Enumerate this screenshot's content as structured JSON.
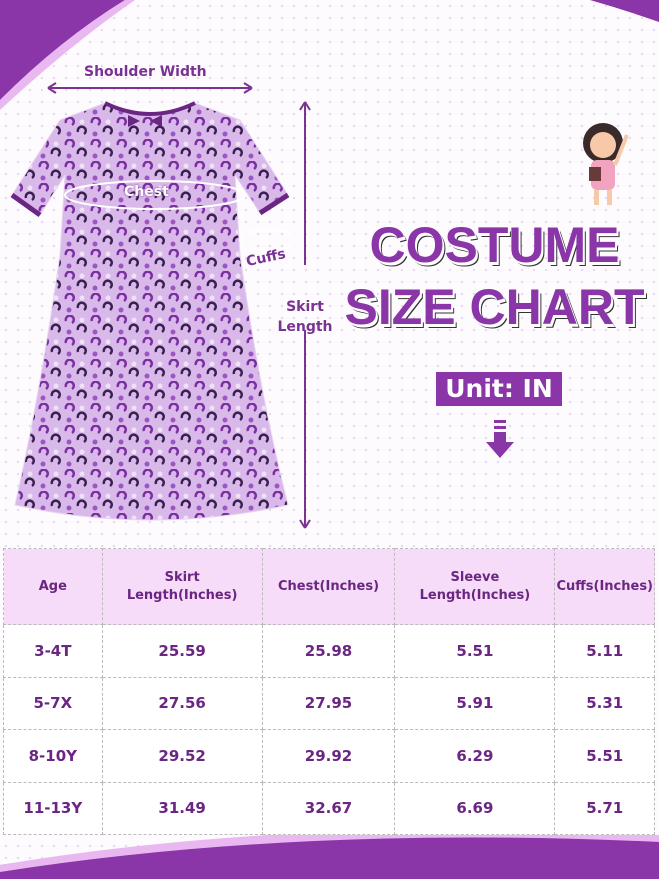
{
  "title_line1": "COSTUME",
  "title_line2": "SIZE CHART",
  "unit_label": "Unit: IN",
  "diagram_labels": {
    "shoulder": "Shoulder Width",
    "chest": "Chest",
    "cuffs": "Cuffs",
    "skirt": "Skirt Length"
  },
  "colors": {
    "accent": "#8a35a8",
    "header_bg": "#f6dcf9",
    "text": "#6a2682"
  },
  "icons": [
    "down-arrow-icon",
    "girl-illustration",
    "dress-illustration"
  ],
  "table": {
    "headers": [
      "Age",
      "Skirt Length(Inches)",
      "Chest(Inches)",
      "Sleeve Length(Inches)",
      "Cuffs(Inches)"
    ],
    "rows": [
      [
        "3-4T",
        "25.59",
        "25.98",
        "5.51",
        "5.11"
      ],
      [
        "5-7X",
        "27.56",
        "27.95",
        "5.91",
        "5.31"
      ],
      [
        "8-10Y",
        "29.52",
        "29.92",
        "6.29",
        "5.51"
      ],
      [
        "11-13Y",
        "31.49",
        "32.67",
        "6.69",
        "5.71"
      ]
    ]
  }
}
